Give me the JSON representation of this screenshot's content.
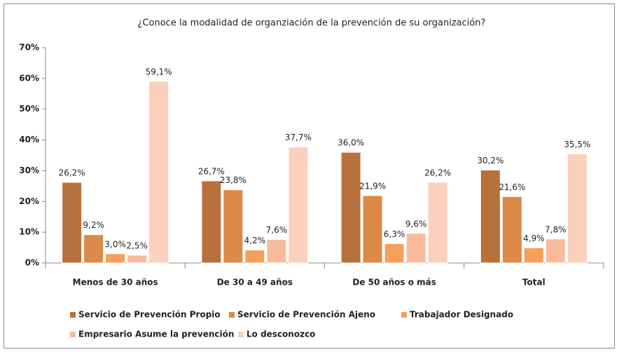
{
  "chart_data": {
    "type": "bar",
    "title": "¿Conoce la modalidad de organziación de la prevención de su organización?",
    "categories": [
      "Menos de 30 años",
      "De 30 a 49 años",
      "De 50 años o más",
      "Total"
    ],
    "series": [
      {
        "name": "Servicio de Prevención Propio",
        "color": "#b8713c",
        "values": [
          26.2,
          26.7,
          36.0,
          30.2
        ],
        "value_labels": [
          "26,2%",
          "26,7%",
          "36,0%",
          "30,2%"
        ]
      },
      {
        "name": "Servicio de Prevención Ajeno",
        "color": "#dc8a48",
        "values": [
          9.2,
          23.8,
          21.9,
          21.6
        ],
        "value_labels": [
          "9,2%",
          "23,8%",
          "21,9%",
          "21,6%"
        ]
      },
      {
        "name": "Trabajador Designado",
        "color": "#f4a05c",
        "values": [
          3.0,
          4.2,
          6.3,
          4.9
        ],
        "value_labels": [
          "3,0%",
          "4,2%",
          "6,3%",
          "4,9%"
        ]
      },
      {
        "name": "Empresario Asume la prevención",
        "color": "#f7bb9c",
        "values": [
          2.5,
          7.6,
          9.6,
          7.8
        ],
        "value_labels": [
          "2,5%",
          "7,6%",
          "9,6%",
          "7,8%"
        ]
      },
      {
        "name": "Lo desconozco",
        "color": "#fbd0bd",
        "values": [
          59.1,
          37.7,
          26.2,
          35.5
        ],
        "value_labels": [
          "59,1%",
          "37,7%",
          "26,2%",
          "35,5%"
        ]
      }
    ],
    "ylim": [
      0,
      70
    ],
    "yticks": [
      {
        "value": 0,
        "label": "0%"
      },
      {
        "value": 10,
        "label": "10%"
      },
      {
        "value": 20,
        "label": "20%"
      },
      {
        "value": 30,
        "label": "30%"
      },
      {
        "value": 40,
        "label": "40%"
      },
      {
        "value": 50,
        "label": "50%"
      },
      {
        "value": 60,
        "label": "60%"
      },
      {
        "value": 70,
        "label": "70%"
      }
    ],
    "grid": false
  }
}
